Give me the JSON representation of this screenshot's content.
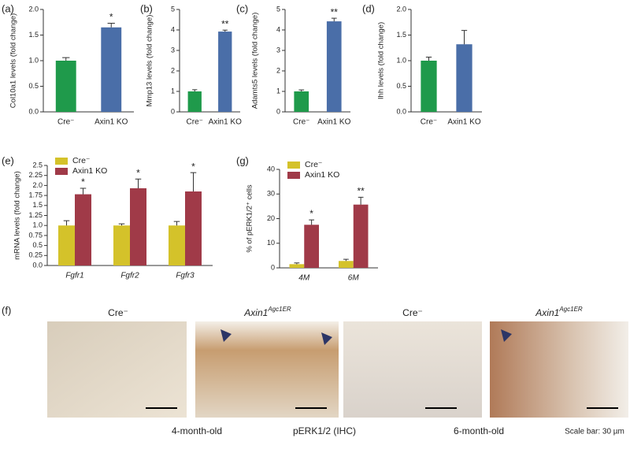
{
  "chart_data": [
    {
      "type": "bar",
      "panel": "(a)",
      "ylabel": "Col10a1 levels (fold change)",
      "categories": [
        "Cre⁻",
        "Axin1 KO"
      ],
      "values": [
        1.0,
        1.65
      ],
      "errors": [
        0.06,
        0.08
      ],
      "colors": [
        "#1f9a4b",
        "#4a6ea8"
      ],
      "significance": [
        null,
        "*"
      ],
      "ylim": [
        0,
        2
      ],
      "yticks": [
        {
          "value": 0,
          "label": "0.0"
        },
        {
          "value": 0.5,
          "label": "0.5"
        },
        {
          "value": 1,
          "label": "1.0"
        },
        {
          "value": 1.5,
          "label": "1.5"
        },
        {
          "value": 2,
          "label": "2.0"
        }
      ]
    },
    {
      "type": "bar",
      "panel": "(b)",
      "ylabel": "Mmp13 levels (fold change)",
      "categories": [
        "Cre⁻",
        "Axin1 KO"
      ],
      "values": [
        1.0,
        3.92
      ],
      "errors": [
        0.08,
        0.07
      ],
      "colors": [
        "#1f9a4b",
        "#4a6ea8"
      ],
      "significance": [
        null,
        "**"
      ],
      "ylim": [
        0,
        5
      ],
      "yticks": [
        0,
        1,
        2,
        3,
        4,
        5
      ]
    },
    {
      "type": "bar",
      "panel": "(c)",
      "ylabel": "Adamts5 levels (fold change)",
      "categories": [
        "Cre⁻",
        "Axin1 KO"
      ],
      "values": [
        1.0,
        4.42
      ],
      "errors": [
        0.07,
        0.15
      ],
      "colors": [
        "#1f9a4b",
        "#4a6ea8"
      ],
      "significance": [
        null,
        "**"
      ],
      "ylim": [
        0,
        5
      ],
      "yticks": [
        0,
        1,
        2,
        3,
        4,
        5
      ]
    },
    {
      "type": "bar",
      "panel": "(d)",
      "ylabel": "Ihh levels (fold change)",
      "categories": [
        "Cre⁻",
        "Axin1 KO"
      ],
      "values": [
        1.0,
        1.32
      ],
      "errors": [
        0.07,
        0.27
      ],
      "colors": [
        "#1f9a4b",
        "#4a6ea8"
      ],
      "ylim": [
        0,
        2
      ],
      "yticks": [
        {
          "value": 0,
          "label": "0.0"
        },
        {
          "value": 0.5,
          "label": "0.5"
        },
        {
          "value": 1,
          "label": "1.0"
        },
        {
          "value": 1.5,
          "label": "1.5"
        },
        {
          "value": 2,
          "label": "2.0"
        }
      ]
    },
    {
      "type": "bar",
      "panel": "(e)",
      "ylabel": "mRNA levels (fold change)",
      "legend": "top-left",
      "categories": [
        "Fgfr1",
        "Fgfr2",
        "Fgfr3"
      ],
      "series": [
        {
          "name": "Cre⁻",
          "color": "#d4c22a",
          "values": [
            1.0,
            1.0,
            1.0
          ],
          "errors": [
            0.12,
            0.04,
            0.1
          ]
        },
        {
          "name": "Axin1 KO",
          "color": "#a03a48",
          "values": [
            1.78,
            1.93,
            1.85
          ],
          "errors": [
            0.15,
            0.23,
            0.47
          ],
          "significance": [
            "*",
            "*",
            "*"
          ]
        }
      ],
      "ylim": [
        0,
        2.5
      ],
      "yticks": [
        {
          "value": 0,
          "label": "0.0"
        },
        0.25,
        {
          "value": 0.5,
          "label": "0.5"
        },
        0.75,
        {
          "value": 1,
          "label": "1.0"
        },
        1.25,
        {
          "value": 1.5,
          "label": "1.5"
        },
        1.75,
        {
          "value": 2,
          "label": "2.0"
        },
        2.25,
        2.5
      ]
    },
    {
      "type": "bar",
      "panel": "(g)",
      "ylabel": "% of pERK1/2⁺ cells",
      "legend": "top-left",
      "categories": [
        "4M",
        "6M"
      ],
      "series": [
        {
          "name": "Cre⁻",
          "color": "#d4c22a",
          "values": [
            1.5,
            2.8
          ],
          "errors": [
            0.5,
            0.7
          ]
        },
        {
          "name": "Axin1 KO",
          "color": "#a03a48",
          "values": [
            17.5,
            25.7
          ],
          "errors": [
            2,
            3
          ],
          "significance": [
            "*",
            "**"
          ]
        }
      ],
      "ylim": [
        0,
        40
      ],
      "yticks": [
        0,
        10,
        20,
        30,
        40
      ]
    }
  ],
  "figure_f": {
    "panel": "(f)",
    "headers": [
      {
        "text": "Cre⁻"
      },
      {
        "text": "Axin1",
        "superscript": "Agc1ER"
      },
      {
        "text": "Cre⁻"
      },
      {
        "text": "Axin1",
        "superscript": "Agc1ER"
      }
    ],
    "captions": [
      "4-month-old",
      "pERK1/2 (IHC)",
      "6-month-old",
      "Scale bar: 30 µm"
    ]
  }
}
